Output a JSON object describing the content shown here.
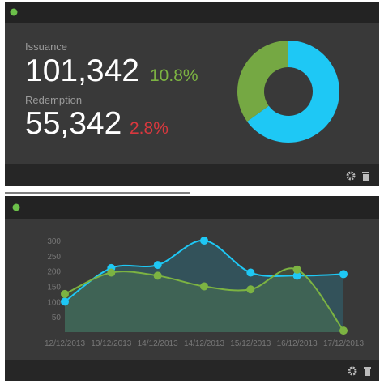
{
  "kpis": [
    {
      "label": "Issuance",
      "value": "101,342",
      "change": "10.8%",
      "change_color": "#7cb342"
    },
    {
      "label": "Redemption",
      "value": "55,342",
      "change": "2.8%",
      "change_color": "#d9383e"
    }
  ],
  "chart_data": [
    {
      "type": "pie",
      "donut": true,
      "values": [
        65,
        35
      ],
      "colors": [
        "#1ec8f5",
        "#75a843"
      ]
    },
    {
      "type": "line",
      "categories": [
        "12/12/2013",
        "13/12/2013",
        "14/12/2013",
        "14/12/2013",
        "15/12/2013",
        "16/12/2013",
        "17/12/2013"
      ],
      "ylim": [
        0,
        300
      ],
      "yticks": [
        50,
        100,
        150,
        200,
        250,
        300
      ],
      "smooth": true,
      "area": true,
      "series": [
        {
          "color": "#1ec8f5",
          "values": [
            100,
            210,
            220,
            300,
            195,
            185,
            190
          ]
        },
        {
          "color": "#7cb342",
          "values": [
            125,
            195,
            185,
            150,
            140,
            205,
            5
          ]
        }
      ]
    }
  ]
}
